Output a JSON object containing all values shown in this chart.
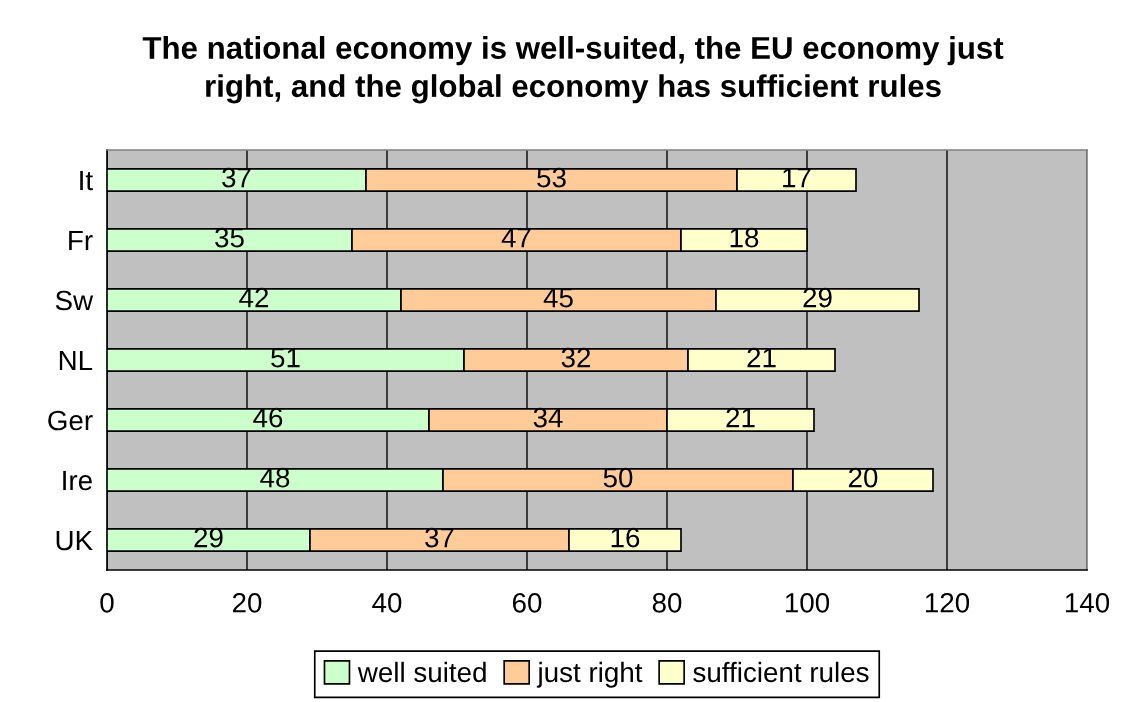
{
  "chart_data": {
    "type": "bar",
    "orientation": "horizontal",
    "stacked": true,
    "title": "The national economy is well-suited, the EU economy just\nright, and the global economy has sufficient rules",
    "categories": [
      "It",
      "Fr",
      "Sw",
      "NL",
      "Ger",
      "Ire",
      "UK"
    ],
    "series": [
      {
        "name": "well suited",
        "color": "#ccffcc",
        "values": [
          37,
          35,
          42,
          51,
          46,
          48,
          29
        ]
      },
      {
        "name": "just right",
        "color": "#ffcc99",
        "values": [
          53,
          47,
          45,
          32,
          34,
          50,
          37
        ]
      },
      {
        "name": "sufficient rules",
        "color": "#ffffcc",
        "values": [
          17,
          18,
          29,
          21,
          21,
          20,
          16
        ]
      }
    ],
    "xlim": [
      0,
      140
    ],
    "xticks": [
      0,
      20,
      40,
      60,
      80,
      100,
      120,
      140
    ],
    "grid": "x",
    "legend": "bottom",
    "data_labels": true
  }
}
